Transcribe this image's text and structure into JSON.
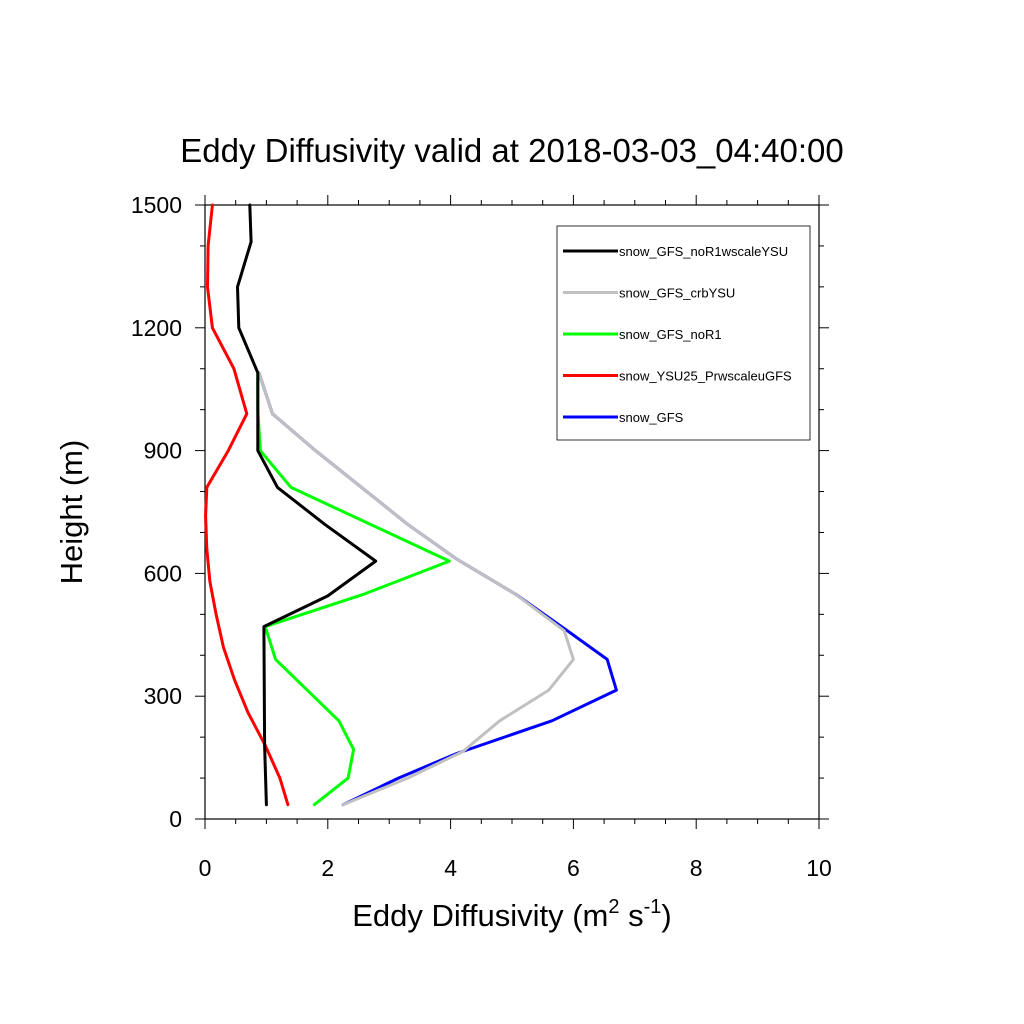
{
  "chart_data": {
    "type": "line",
    "title": "Eddy Diffusivity valid at 2018-03-03_04:40:00",
    "xlabel_base": "Eddy Diffusivity (m",
    "xlabel_sup1": "2",
    "xlabel_mid": " s",
    "xlabel_sup2": "-1",
    "xlabel_end": ")",
    "ylabel": "Height (m)",
    "xlim": [
      0,
      10
    ],
    "ylim": [
      0,
      1500
    ],
    "xticks": [
      "0",
      "2",
      "4",
      "6",
      "8",
      "10"
    ],
    "yticks": [
      "0",
      "300",
      "600",
      "900",
      "1200",
      "1500"
    ],
    "legend_position": "top-right",
    "series": [
      {
        "name": "snow_GFS",
        "color": "#0000ff",
        "points": [
          [
            2.25,
            35
          ],
          [
            3.15,
            100
          ],
          [
            4.1,
            160
          ],
          [
            5.65,
            240
          ],
          [
            6.7,
            315
          ],
          [
            6.55,
            390
          ],
          [
            5.9,
            460
          ],
          [
            5.05,
            550
          ],
          [
            4.1,
            635
          ],
          [
            3.3,
            720
          ],
          [
            2.55,
            810
          ],
          [
            1.8,
            900
          ],
          [
            1.1,
            990
          ],
          [
            0.88,
            1090
          ]
        ]
      },
      {
        "name": "snow_GFS_crbYSU",
        "color": "#c0c0c0",
        "points": [
          [
            2.25,
            35
          ],
          [
            3.3,
            100
          ],
          [
            4.2,
            165
          ],
          [
            4.8,
            240
          ],
          [
            5.6,
            315
          ],
          [
            6.0,
            390
          ],
          [
            5.85,
            460
          ],
          [
            5.05,
            550
          ],
          [
            4.1,
            635
          ],
          [
            3.3,
            720
          ],
          [
            2.55,
            810
          ],
          [
            1.8,
            900
          ],
          [
            1.1,
            990
          ],
          [
            0.88,
            1090
          ]
        ]
      },
      {
        "name": "snow_GFS_noR1",
        "color": "#00ff00",
        "points": [
          [
            1.78,
            35
          ],
          [
            2.33,
            100
          ],
          [
            2.42,
            170
          ],
          [
            2.18,
            240
          ],
          [
            1.15,
            390
          ],
          [
            0.98,
            470
          ],
          [
            2.6,
            550
          ],
          [
            3.98,
            630
          ],
          [
            1.4,
            810
          ],
          [
            0.9,
            900
          ],
          [
            0.86,
            1000
          ],
          [
            0.86,
            1090
          ]
        ]
      },
      {
        "name": "snow_YSU25_PrwscaleuGFS",
        "color": "#ff0000",
        "points": [
          [
            1.35,
            35
          ],
          [
            1.22,
            100
          ],
          [
            0.98,
            180
          ],
          [
            0.7,
            260
          ],
          [
            0.48,
            340
          ],
          [
            0.3,
            420
          ],
          [
            0.18,
            500
          ],
          [
            0.08,
            580
          ],
          [
            0.03,
            660
          ],
          [
            0.01,
            740
          ],
          [
            0.03,
            810
          ],
          [
            0.38,
            900
          ],
          [
            0.68,
            990
          ],
          [
            0.47,
            1100
          ],
          [
            0.12,
            1200
          ],
          [
            0.04,
            1300
          ],
          [
            0.05,
            1400
          ],
          [
            0.12,
            1500
          ]
        ]
      },
      {
        "name": "snow_GFS_noR1wscaleYSU",
        "color": "#000000",
        "points": [
          [
            1.0,
            35
          ],
          [
            0.97,
            180
          ],
          [
            0.96,
            470
          ],
          [
            2.0,
            545
          ],
          [
            2.78,
            630
          ],
          [
            1.95,
            720
          ],
          [
            1.18,
            810
          ],
          [
            0.86,
            900
          ],
          [
            0.86,
            1000
          ],
          [
            0.86,
            1090
          ],
          [
            0.55,
            1200
          ],
          [
            0.53,
            1300
          ],
          [
            0.75,
            1410
          ],
          [
            0.73,
            1500
          ]
        ]
      }
    ],
    "legend": [
      "snow_GFS_noR1wscaleYSU",
      "snow_GFS_crbYSU",
      "snow_GFS_noR1",
      "snow_YSU25_PrwscaleuGFS",
      "snow_GFS"
    ]
  }
}
